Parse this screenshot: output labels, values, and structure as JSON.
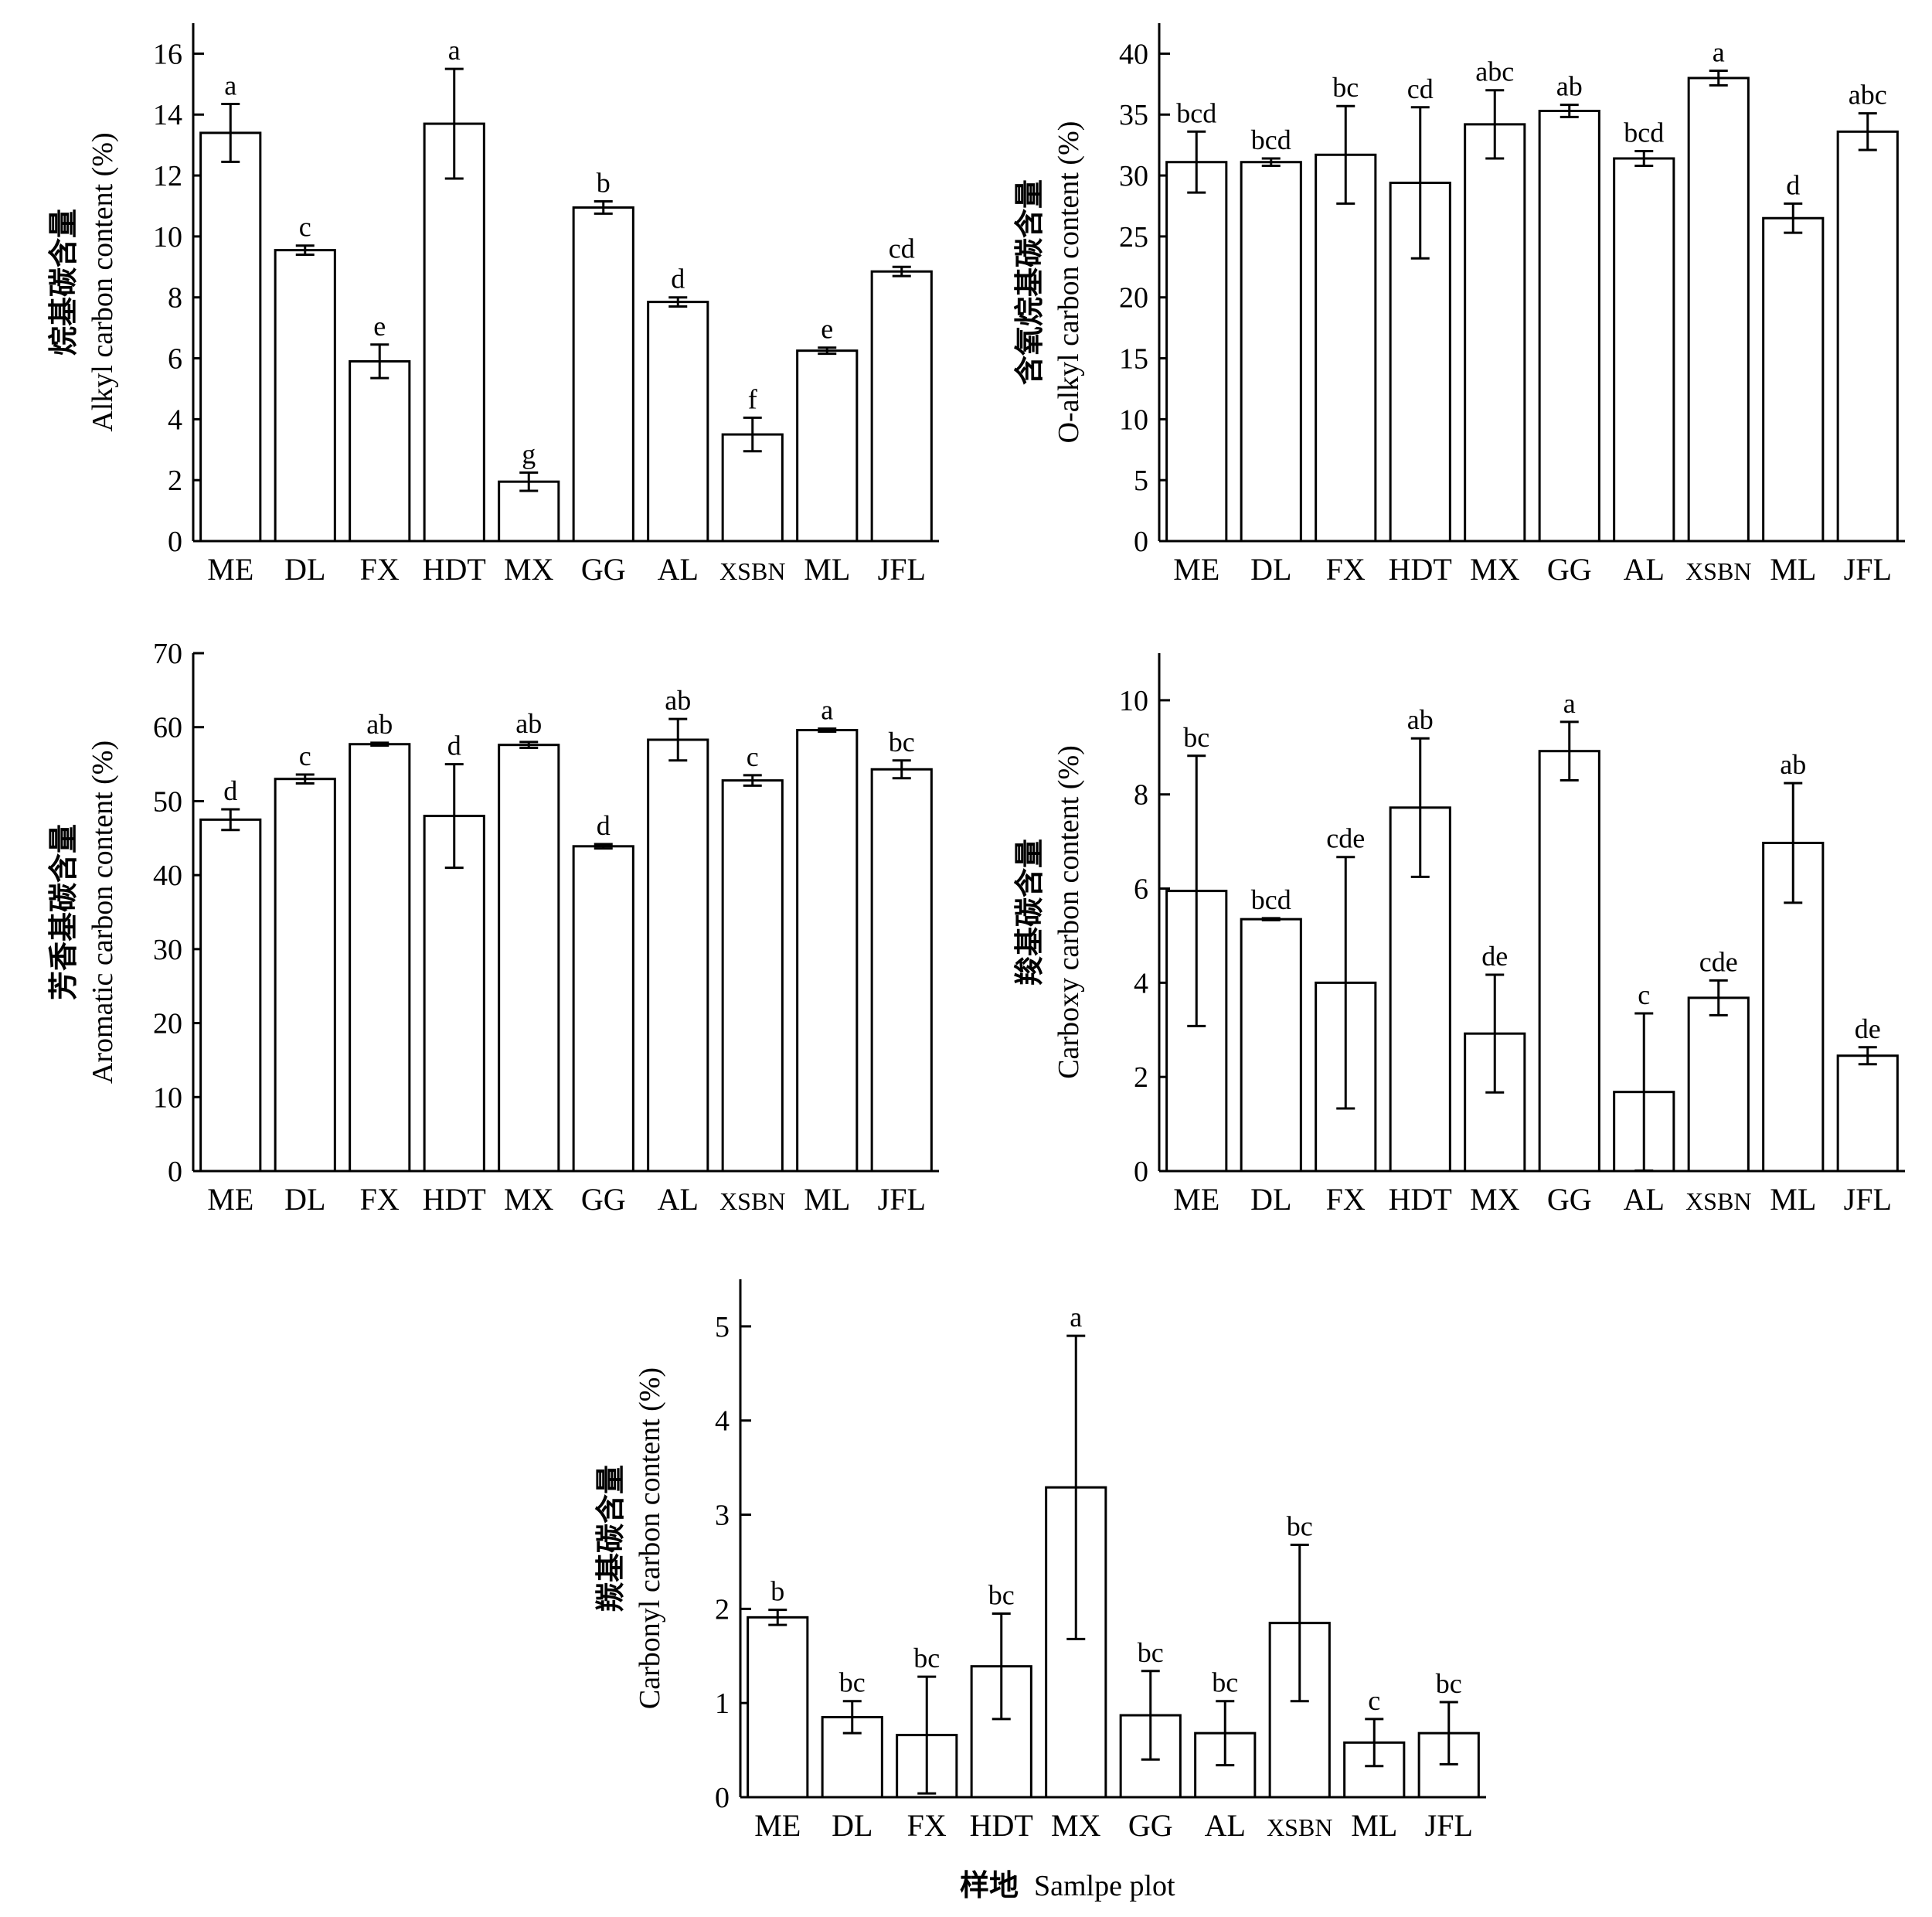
{
  "categories": [
    "ME",
    "DL",
    "FX",
    "HDT",
    "MX",
    "GG",
    "AL",
    "XSBN",
    "ML",
    "JFL"
  ],
  "xlabel": {
    "zh": "样地",
    "en": "Samlpe plot"
  },
  "chart_data": [
    {
      "type": "bar",
      "ylabel_zh": "烷基碳含量",
      "ylabel_en": "Alkyl carbon content (%)",
      "ylim": [
        0,
        17
      ],
      "yticks": [
        0,
        2,
        4,
        6,
        8,
        10,
        12,
        14,
        16
      ],
      "categories": [
        "ME",
        "DL",
        "FX",
        "HDT",
        "MX",
        "GG",
        "AL",
        "XSBN",
        "ML",
        "JFL"
      ],
      "values": [
        13.4,
        9.55,
        5.9,
        13.7,
        1.95,
        10.95,
        7.85,
        3.5,
        6.25,
        8.85
      ],
      "errors": [
        0.95,
        0.15,
        0.55,
        1.8,
        0.3,
        0.2,
        0.15,
        0.55,
        0.1,
        0.15
      ],
      "labels": [
        "a",
        "c",
        "e",
        "a",
        "g",
        "b",
        "d",
        "f",
        "e",
        "cd"
      ]
    },
    {
      "type": "bar",
      "ylabel_zh": "含氧烷基碳含量",
      "ylabel_en": "O-alkyl carbon content (%)",
      "ylim": [
        0,
        42.5
      ],
      "yticks": [
        0,
        5,
        10,
        15,
        20,
        25,
        30,
        35,
        40
      ],
      "categories": [
        "ME",
        "DL",
        "FX",
        "HDT",
        "MX",
        "GG",
        "AL",
        "XSBN",
        "ML",
        "JFL"
      ],
      "values": [
        31.1,
        31.1,
        31.7,
        29.4,
        34.2,
        35.3,
        31.4,
        38.0,
        26.5,
        33.6
      ],
      "errors": [
        2.5,
        0.3,
        4.0,
        6.2,
        2.8,
        0.5,
        0.6,
        0.6,
        1.2,
        1.5
      ],
      "labels": [
        "bcd",
        "bcd",
        "bc",
        "cd",
        "abc",
        "ab",
        "bcd",
        "a",
        "d",
        "abc"
      ]
    },
    {
      "type": "bar",
      "ylabel_zh": "芳香基碳含量",
      "ylabel_en": "Aromatic carbon content (%)",
      "ylim": [
        0,
        70
      ],
      "yticks": [
        0,
        10,
        20,
        30,
        40,
        50,
        60,
        70
      ],
      "categories": [
        "ME",
        "DL",
        "FX",
        "HDT",
        "MX",
        "GG",
        "AL",
        "XSBN",
        "ML",
        "JFL"
      ],
      "values": [
        47.5,
        53.0,
        57.7,
        48.0,
        57.6,
        43.9,
        58.3,
        52.8,
        59.6,
        54.3
      ],
      "errors": [
        1.4,
        0.6,
        0.2,
        7.0,
        0.4,
        0.3,
        2.8,
        0.7,
        0.2,
        1.2
      ],
      "labels": [
        "d",
        "c",
        "ab",
        "d",
        "ab",
        "d",
        "ab",
        "c",
        "a",
        "bc"
      ]
    },
    {
      "type": "bar",
      "ylabel_zh": "羧基碳含量",
      "ylabel_en": "Carboxy carbon content (%)",
      "ylim": [
        0,
        11
      ],
      "yticks": [
        0,
        2,
        4,
        6,
        8,
        10
      ],
      "categories": [
        "ME",
        "DL",
        "FX",
        "HDT",
        "MX",
        "GG",
        "AL",
        "XSBN",
        "ML",
        "JFL"
      ],
      "values": [
        5.95,
        5.35,
        4.0,
        7.72,
        2.92,
        8.92,
        1.68,
        3.68,
        6.97,
        2.45
      ],
      "errors": [
        2.87,
        0.02,
        2.67,
        1.47,
        1.25,
        0.62,
        1.67,
        0.37,
        1.27,
        0.18
      ],
      "labels": [
        "bc",
        "bcd",
        "cde",
        "ab",
        "de",
        "a",
        "c",
        "cde",
        "ab",
        "de"
      ]
    },
    {
      "type": "bar",
      "ylabel_zh": "羰基碳含量",
      "ylabel_en": "Carbonyl carbon content (%)",
      "ylim": [
        0,
        5.5
      ],
      "yticks": [
        0,
        1,
        2,
        3,
        4,
        5
      ],
      "categories": [
        "ME",
        "DL",
        "FX",
        "HDT",
        "MX",
        "GG",
        "AL",
        "XSBN",
        "ML",
        "JFL"
      ],
      "values": [
        1.91,
        0.85,
        0.66,
        1.39,
        3.29,
        0.87,
        0.68,
        1.85,
        0.58,
        0.68
      ],
      "errors": [
        0.08,
        0.17,
        0.62,
        0.56,
        1.61,
        0.47,
        0.34,
        0.83,
        0.25,
        0.33
      ],
      "labels": [
        "b",
        "bc",
        "bc",
        "bc",
        "a",
        "bc",
        "bc",
        "bc",
        "c",
        "bc"
      ]
    }
  ]
}
